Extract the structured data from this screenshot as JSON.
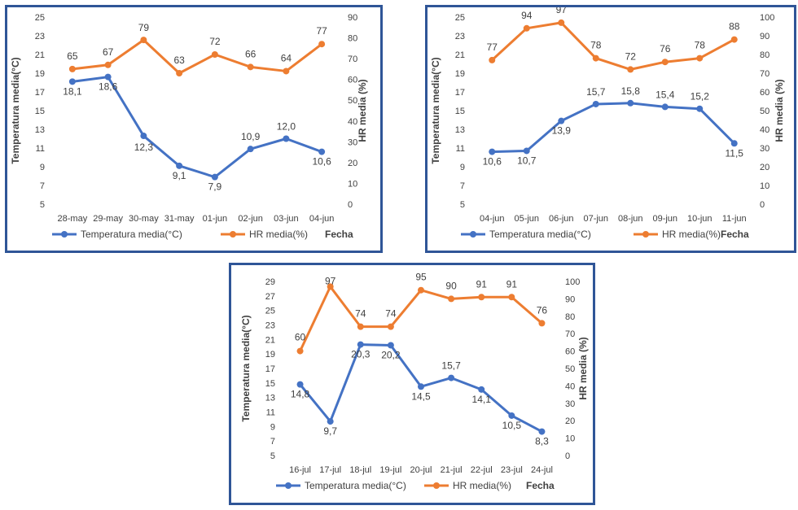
{
  "legend": {
    "temp_label": "Temperatura media(°C)",
    "hr_label": "HR media(%)",
    "x_title": "Fecha"
  },
  "colors": {
    "temp": "#4472c4",
    "hr": "#ed7d31",
    "frame": "#2f5597",
    "text": "#404040",
    "grid": "#d9d9d9"
  },
  "chart_data": [
    {
      "type": "line",
      "categories": [
        "28-may",
        "29-may",
        "30-may",
        "31-may",
        "01-jun",
        "02-jun",
        "03-jun",
        "04-jun"
      ],
      "xlabel": "Fecha",
      "ylabel": "Temperatura media(°C)",
      "y2label": "HR media (%)",
      "ylim": [
        5,
        25
      ],
      "yticks": [
        5,
        7,
        9,
        11,
        13,
        15,
        17,
        19,
        21,
        23,
        25
      ],
      "y2lim": [
        0,
        90
      ],
      "y2ticks": [
        0,
        10,
        20,
        30,
        40,
        50,
        60,
        70,
        80,
        90
      ],
      "series": [
        {
          "name": "Temperatura media(°C)",
          "axis": "left",
          "values": [
            18.1,
            18.6,
            12.3,
            9.1,
            7.9,
            10.9,
            12.0,
            10.6
          ],
          "labels": [
            "18,1",
            "18,6",
            "12,3",
            "9,1",
            "7,9",
            "10,9",
            "12,0",
            "10,6"
          ]
        },
        {
          "name": "HR media(%)",
          "axis": "right",
          "values": [
            65,
            67,
            79,
            63,
            72,
            66,
            64,
            77
          ],
          "labels": [
            "65",
            "67",
            "79",
            "63",
            "72",
            "66",
            "64",
            "77"
          ]
        }
      ]
    },
    {
      "type": "line",
      "categories": [
        "04-jun",
        "05-jun",
        "06-jun",
        "07-jun",
        "08-jun",
        "09-jun",
        "10-jun",
        "11-jun"
      ],
      "xlabel": "Fecha",
      "ylabel": "Temperatura media(°C)",
      "y2label": "HR media (%)",
      "ylim": [
        5,
        25
      ],
      "yticks": [
        5,
        7,
        9,
        11,
        13,
        15,
        17,
        19,
        21,
        23,
        25
      ],
      "y2lim": [
        0,
        100
      ],
      "y2ticks": [
        0,
        10,
        20,
        30,
        40,
        50,
        60,
        70,
        80,
        90,
        100
      ],
      "series": [
        {
          "name": "Temperatura media(°C)",
          "axis": "left",
          "values": [
            10.6,
            10.7,
            13.9,
            15.7,
            15.8,
            15.4,
            15.2,
            11.5
          ],
          "labels": [
            "10,6",
            "10,7",
            "13,9",
            "15,7",
            "15,8",
            "15,4",
            "15,2",
            "11,5"
          ]
        },
        {
          "name": "HR media(%)",
          "axis": "right",
          "values": [
            77,
            94,
            97,
            78,
            72,
            76,
            78,
            88
          ],
          "labels": [
            "77",
            "94",
            "97",
            "78",
            "72",
            "76",
            "78",
            "88"
          ]
        }
      ]
    },
    {
      "type": "line",
      "categories": [
        "16-jul",
        "17-jul",
        "18-jul",
        "19-jul",
        "20-jul",
        "21-jul",
        "22-jul",
        "23-jul",
        "24-jul"
      ],
      "xlabel": "Fecha",
      "ylabel": "Temperatura media(°C)",
      "y2label": "HR media (%)",
      "ylim": [
        5,
        29
      ],
      "yticks": [
        5,
        7,
        9,
        11,
        13,
        15,
        17,
        19,
        21,
        23,
        25,
        27,
        29
      ],
      "y2lim": [
        0,
        100
      ],
      "y2ticks": [
        0,
        10,
        20,
        30,
        40,
        50,
        60,
        70,
        80,
        90,
        100
      ],
      "series": [
        {
          "name": "Temperatura media(°C)",
          "axis": "left",
          "values": [
            14.8,
            9.7,
            20.3,
            20.2,
            14.5,
            15.7,
            14.1,
            10.5,
            8.3
          ],
          "labels": [
            "14,8",
            "9,7",
            "20,3",
            "20,2",
            "14,5",
            "15,7",
            "14,1",
            "10,5",
            "8,3"
          ]
        },
        {
          "name": "HR media(%)",
          "axis": "right",
          "values": [
            60,
            97,
            74,
            74,
            95,
            90,
            91,
            91,
            76
          ],
          "labels": [
            "60",
            "97",
            "74",
            "74",
            "95",
            "90",
            "91",
            "91",
            "76"
          ]
        }
      ]
    }
  ]
}
